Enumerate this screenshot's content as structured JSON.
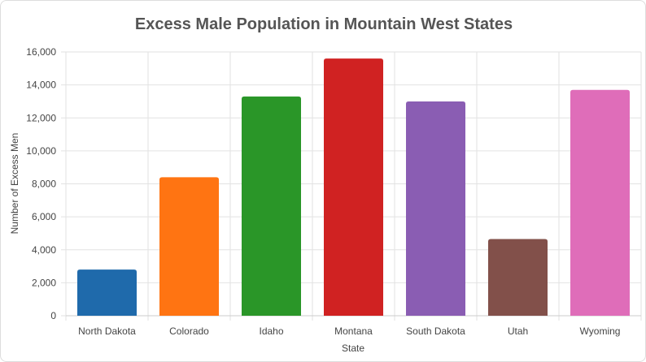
{
  "chart_data": {
    "type": "bar",
    "title": "Excess Male Population in Mountain West States",
    "xlabel": "State",
    "ylabel": "Number of Excess Men",
    "categories": [
      "North Dakota",
      "Colorado",
      "Idaho",
      "Montana",
      "South Dakota",
      "Utah",
      "Wyoming"
    ],
    "values": [
      2800,
      8400,
      13300,
      15600,
      13000,
      4650,
      13700
    ],
    "colors": [
      "#1f6aab",
      "#ff7412",
      "#2a9628",
      "#d02222",
      "#8a5db3",
      "#82504a",
      "#df6db9"
    ],
    "ylim": [
      0,
      16000
    ],
    "yticks": [
      0,
      2000,
      4000,
      6000,
      8000,
      10000,
      12000,
      14000,
      16000
    ],
    "ytick_labels": [
      "0",
      "2,000",
      "4,000",
      "6,000",
      "8,000",
      "10,000",
      "12,000",
      "14,000",
      "16,000"
    ],
    "grid": true,
    "legend": "none"
  }
}
